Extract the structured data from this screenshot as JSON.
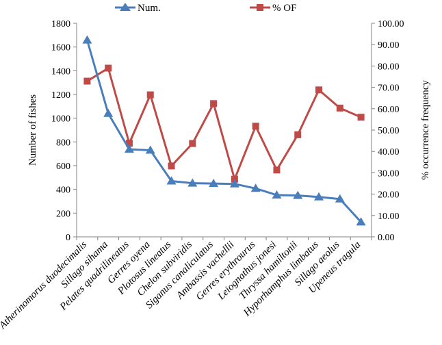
{
  "chart_data": {
    "type": "line",
    "categories": [
      "Atherinomorus duodecimalis",
      "Sillago sihama",
      "Pelates quadrilineatus",
      "Gerres oyena",
      "Plotosus lineatus",
      "Chelon subviridis",
      "Siganus canaliculatus",
      "Ambassis vachellii",
      "Gerres erythrourus",
      "Leiognathus jonesi",
      "Thryssa hamiltonii",
      "Hyporhamphus  limbatus",
      "Sillago aeolus",
      "Upeneus tragula"
    ],
    "series": [
      {
        "name": "Num.",
        "axis": "left",
        "color": "#4a7ebb",
        "marker": "triangle",
        "values": [
          1658,
          1040,
          738,
          730,
          470,
          452,
          449,
          446,
          408,
          352,
          348,
          336,
          319,
          125
        ]
      },
      {
        "name": "% OF",
        "axis": "right",
        "color": "#be4b48",
        "marker": "square",
        "values": [
          72.9,
          79.0,
          43.8,
          66.5,
          33.2,
          43.7,
          62.4,
          27.0,
          51.8,
          31.3,
          47.8,
          68.8,
          60.3,
          56.0
        ]
      }
    ],
    "ylabel": "Number of fishes",
    "ylabel_right": "% occurrence frequency",
    "ylim": [
      0,
      1800
    ],
    "ylim_right": [
      0,
      100
    ],
    "yticks": [
      "0",
      "200",
      "400",
      "600",
      "800",
      "1000",
      "1200",
      "1400",
      "1600",
      "1800"
    ],
    "yticks_right": [
      "0.00",
      "10.00",
      "20.00",
      "30.00",
      "40.00",
      "50.00",
      "60.00",
      "70.00",
      "80.00",
      "90.00",
      "100.00"
    ],
    "grid": false,
    "legend": "top"
  }
}
